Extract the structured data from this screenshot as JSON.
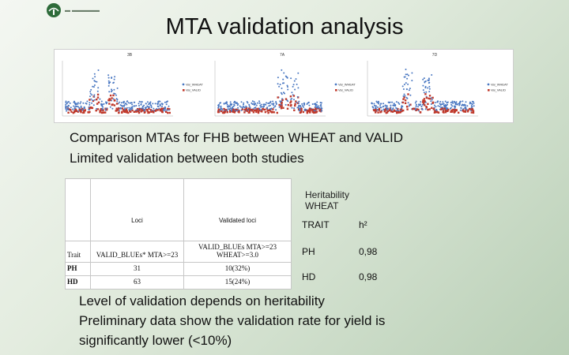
{
  "logo": {
    "text": "vetenskap-logo"
  },
  "title": "MTA validation analysis",
  "plots": [
    {
      "label": "3B",
      "legend": [
        "Val_WHEAT",
        "Val_VALID"
      ]
    },
    {
      "label": "7A",
      "legend": [
        "Val_WHEAT",
        "Val_VALID"
      ]
    },
    {
      "label": "7D",
      "legend": [
        "Val_WHEAT",
        "Val_VALID"
      ]
    }
  ],
  "bullets_top": [
    "Comparison MTAs for FHB between WHEAT and VALID",
    "Limited validation between both studies"
  ],
  "table": {
    "header": [
      "",
      "Loci",
      "Validated loci"
    ],
    "subheader": [
      "Trait",
      "VALID_BLUEs* MTA>=23",
      "VALID_BLUEs MTA>=23 WHEAT>=3.0"
    ],
    "rows": [
      [
        "PH",
        "31",
        "10(32%)"
      ],
      [
        "HD",
        "63",
        "15(24%)"
      ]
    ]
  },
  "heritability": {
    "title_line1": "Heritability",
    "title_line2": "WHEAT",
    "header": [
      "TRAIT",
      "h²"
    ],
    "rows": [
      [
        "PH",
        "0,98"
      ],
      [
        "HD",
        "0,98"
      ]
    ]
  },
  "bullets_bottom": [
    "Level of validation depends on heritability",
    "Preliminary data show the validation rate for yield is",
    "significantly lower (<10%)"
  ],
  "colors": {
    "series_wheat": "#4a78c2",
    "series_valid": "#c0392b",
    "accent": "#2e6b3a"
  }
}
